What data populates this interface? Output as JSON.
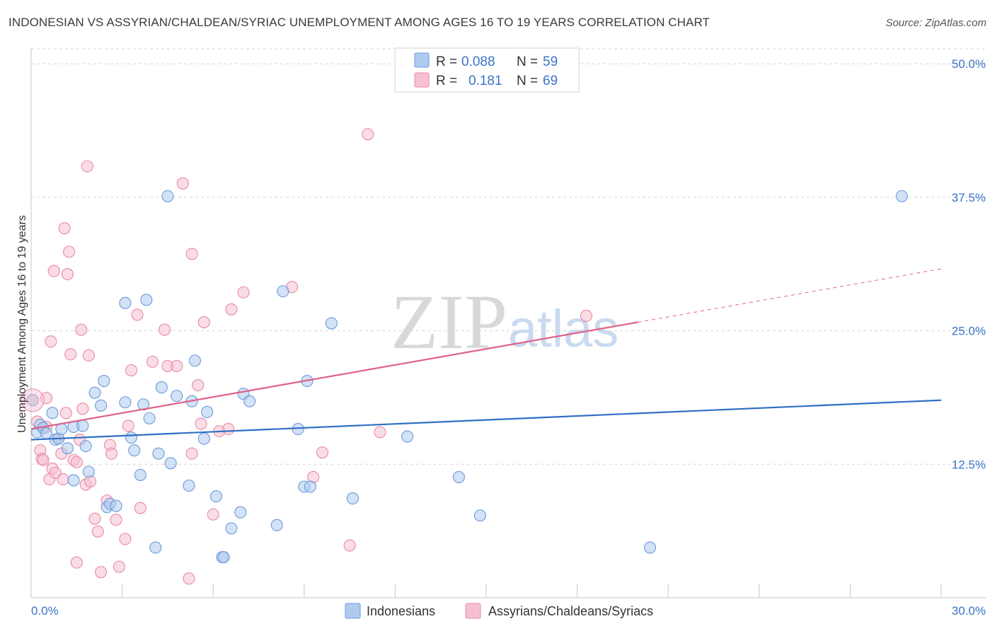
{
  "title": "INDONESIAN VS ASSYRIAN/CHALDEAN/SYRIAC UNEMPLOYMENT AMONG AGES 16 TO 19 YEARS CORRELATION CHART",
  "source": "Source: ZipAtlas.com",
  "watermark": {
    "zip": "ZIP",
    "atlas": "atlas"
  },
  "colors": {
    "blue_fill": "#aecbef",
    "blue_stroke": "#6a9bd8",
    "blue_line": "#2f6fc4",
    "pink_fill": "#f6c0d0",
    "pink_stroke": "#e88aa6",
    "pink_line": "#e0608a",
    "grid": "#d5d5d5",
    "axis_label": "#3a74c6"
  },
  "legend": {
    "r_label": "R =",
    "n_label": "N =",
    "series": [
      {
        "r": "0.088",
        "n": "59"
      },
      {
        "r": "0.181",
        "n": "69"
      }
    ]
  },
  "chart_data": {
    "type": "scatter",
    "title": "INDONESIAN VS ASSYRIAN/CHALDEAN/SYRIAC UNEMPLOYMENT AMONG AGES 16 TO 19 YEARS CORRELATION CHART",
    "xlabel": "",
    "ylabel": "Unemployment Among Ages 16 to 19 years",
    "xlim": [
      0,
      30
    ],
    "ylim": [
      0,
      52
    ],
    "x_tick_labels": [
      "0.0%",
      "30.0%"
    ],
    "y_ticks": [
      12.5,
      25.0,
      37.5,
      50.0
    ],
    "y_tick_labels": [
      "12.5%",
      "25.0%",
      "37.5%",
      "50.0%"
    ],
    "series": [
      {
        "name": "Indonesians",
        "r": 0.088,
        "n": 59,
        "trend": {
          "x0": 0,
          "y0": 14.8,
          "x1": 30,
          "y1": 18.5,
          "dashed_to": null
        },
        "points": [
          [
            0.05,
            18.5
          ],
          [
            0.2,
            15.5
          ],
          [
            0.3,
            16.2
          ],
          [
            0.4,
            15.9
          ],
          [
            0.5,
            15.4
          ],
          [
            0.7,
            17.3
          ],
          [
            0.8,
            14.8
          ],
          [
            0.9,
            14.9
          ],
          [
            1.0,
            15.8
          ],
          [
            1.2,
            14.0
          ],
          [
            1.4,
            16.0
          ],
          [
            1.4,
            11.0
          ],
          [
            1.7,
            16.1
          ],
          [
            1.8,
            14.2
          ],
          [
            1.9,
            11.8
          ],
          [
            2.1,
            19.2
          ],
          [
            2.3,
            18.0
          ],
          [
            2.4,
            20.3
          ],
          [
            2.5,
            8.5
          ],
          [
            2.6,
            8.8
          ],
          [
            2.8,
            8.6
          ],
          [
            3.1,
            27.6
          ],
          [
            3.1,
            18.3
          ],
          [
            3.3,
            15.0
          ],
          [
            3.4,
            13.8
          ],
          [
            3.6,
            11.5
          ],
          [
            3.7,
            18.1
          ],
          [
            3.8,
            27.9
          ],
          [
            3.9,
            16.8
          ],
          [
            4.1,
            4.7
          ],
          [
            4.2,
            13.5
          ],
          [
            4.3,
            19.7
          ],
          [
            4.5,
            37.6
          ],
          [
            4.6,
            12.6
          ],
          [
            4.8,
            18.9
          ],
          [
            5.2,
            10.5
          ],
          [
            5.3,
            18.4
          ],
          [
            5.4,
            22.2
          ],
          [
            5.7,
            14.9
          ],
          [
            5.8,
            17.4
          ],
          [
            6.1,
            9.5
          ],
          [
            6.3,
            3.8
          ],
          [
            6.35,
            3.8
          ],
          [
            6.6,
            6.5
          ],
          [
            6.9,
            8.0
          ],
          [
            7.0,
            19.1
          ],
          [
            7.2,
            18.4
          ],
          [
            8.1,
            6.8
          ],
          [
            8.3,
            28.7
          ],
          [
            8.8,
            15.8
          ],
          [
            9.0,
            10.4
          ],
          [
            9.2,
            10.4
          ],
          [
            9.1,
            20.3
          ],
          [
            9.9,
            25.7
          ],
          [
            10.6,
            9.3
          ],
          [
            12.4,
            15.1
          ],
          [
            14.1,
            11.3
          ],
          [
            14.8,
            7.7
          ],
          [
            20.4,
            4.7
          ],
          [
            28.7,
            37.6
          ]
        ]
      },
      {
        "name": "Assyrians/Chaldeans/Syriacs",
        "r": 0.181,
        "n": 69,
        "trend": {
          "x0": 0,
          "y0": 15.8,
          "x1": 20.0,
          "y1": 25.8,
          "dashed_to": {
            "x": 30,
            "y": 30.8
          }
        },
        "points": [
          [
            0.05,
            18.5
          ],
          [
            0.2,
            16.5
          ],
          [
            0.3,
            13.8
          ],
          [
            0.35,
            13.0
          ],
          [
            0.4,
            12.9
          ],
          [
            0.5,
            18.7
          ],
          [
            0.5,
            16.0
          ],
          [
            0.6,
            11.1
          ],
          [
            0.65,
            24.0
          ],
          [
            0.7,
            12.1
          ],
          [
            0.75,
            30.6
          ],
          [
            0.8,
            11.7
          ],
          [
            0.9,
            14.9
          ],
          [
            1.0,
            13.5
          ],
          [
            1.05,
            11.1
          ],
          [
            1.1,
            34.6
          ],
          [
            1.15,
            17.3
          ],
          [
            1.2,
            30.3
          ],
          [
            1.25,
            32.4
          ],
          [
            1.3,
            22.8
          ],
          [
            1.4,
            12.9
          ],
          [
            1.5,
            12.7
          ],
          [
            1.5,
            3.3
          ],
          [
            1.6,
            14.8
          ],
          [
            1.65,
            25.1
          ],
          [
            1.7,
            17.7
          ],
          [
            1.8,
            10.6
          ],
          [
            1.85,
            40.4
          ],
          [
            1.9,
            22.7
          ],
          [
            1.95,
            10.9
          ],
          [
            2.1,
            7.4
          ],
          [
            2.2,
            6.2
          ],
          [
            2.3,
            2.4
          ],
          [
            2.5,
            9.1
          ],
          [
            2.6,
            14.3
          ],
          [
            2.65,
            13.5
          ],
          [
            2.8,
            7.3
          ],
          [
            2.9,
            2.9
          ],
          [
            3.1,
            5.5
          ],
          [
            3.2,
            16.1
          ],
          [
            3.3,
            21.3
          ],
          [
            3.5,
            26.5
          ],
          [
            3.6,
            8.4
          ],
          [
            4.0,
            22.1
          ],
          [
            4.4,
            25.1
          ],
          [
            4.5,
            21.7
          ],
          [
            4.8,
            21.7
          ],
          [
            5.0,
            38.8
          ],
          [
            5.2,
            1.8
          ],
          [
            5.3,
            32.2
          ],
          [
            5.3,
            13.5
          ],
          [
            5.5,
            19.9
          ],
          [
            5.6,
            16.3
          ],
          [
            5.7,
            25.8
          ],
          [
            6.0,
            7.8
          ],
          [
            6.2,
            15.6
          ],
          [
            6.5,
            15.8
          ],
          [
            6.6,
            27.0
          ],
          [
            7.0,
            28.6
          ],
          [
            8.6,
            29.1
          ],
          [
            9.3,
            11.3
          ],
          [
            9.6,
            13.6
          ],
          [
            10.5,
            4.9
          ],
          [
            11.5,
            15.5
          ],
          [
            11.1,
            43.4
          ],
          [
            18.3,
            26.4
          ]
        ]
      }
    ]
  },
  "bottom_legend": [
    "Indonesians",
    "Assyrians/Chaldeans/Syriacs"
  ]
}
